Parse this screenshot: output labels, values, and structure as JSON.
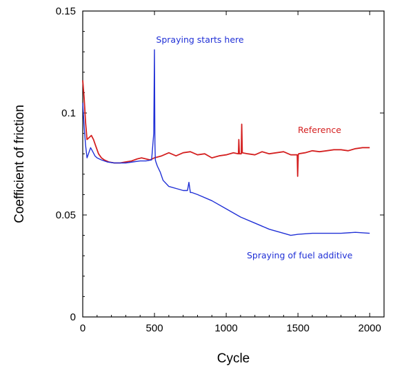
{
  "chart_data": {
    "type": "line",
    "title": "",
    "xlabel": "Cycle",
    "ylabel": "Coefficient of friction",
    "xlim": [
      0,
      2100
    ],
    "ylim": [
      0,
      0.15
    ],
    "xticks": [
      0,
      500,
      1000,
      1500,
      2000
    ],
    "xtick_labels": [
      "0",
      "500",
      "1000",
      "1500",
      "2000"
    ],
    "yticks": [
      0,
      0.05,
      0.1,
      0.15
    ],
    "ytick_labels": [
      "0",
      "0.05",
      "0.1",
      "0.15"
    ],
    "grid": false,
    "legend": "none",
    "series": [
      {
        "name": "Reference",
        "color": "#d42020",
        "x": [
          0,
          10,
          20,
          30,
          45,
          60,
          75,
          90,
          110,
          130,
          150,
          180,
          220,
          260,
          300,
          340,
          380,
          410,
          440,
          470,
          500,
          550,
          600,
          650,
          700,
          750,
          800,
          850,
          900,
          950,
          1000,
          1050,
          1085,
          1088,
          1092,
          1105,
          1108,
          1112,
          1150,
          1200,
          1250,
          1300,
          1350,
          1400,
          1450,
          1495,
          1498,
          1502,
          1505,
          1550,
          1600,
          1650,
          1700,
          1750,
          1800,
          1850,
          1900,
          1950,
          2000
        ],
        "y": [
          0.116,
          0.107,
          0.095,
          0.087,
          0.088,
          0.089,
          0.087,
          0.084,
          0.08,
          0.078,
          0.077,
          0.076,
          0.0755,
          0.0755,
          0.076,
          0.0765,
          0.0775,
          0.078,
          0.0775,
          0.077,
          0.078,
          0.079,
          0.0805,
          0.079,
          0.0805,
          0.081,
          0.0795,
          0.08,
          0.078,
          0.079,
          0.0795,
          0.0805,
          0.08,
          0.087,
          0.08,
          0.08,
          0.0945,
          0.0805,
          0.08,
          0.0795,
          0.081,
          0.08,
          0.0805,
          0.081,
          0.0795,
          0.0795,
          0.069,
          0.0795,
          0.08,
          0.0805,
          0.0815,
          0.081,
          0.0815,
          0.082,
          0.082,
          0.0815,
          0.0825,
          0.083,
          0.083
        ]
      },
      {
        "name": "Spraying of fuel additive",
        "color": "#1f2fd6",
        "x": [
          0,
          10,
          20,
          30,
          40,
          55,
          70,
          85,
          100,
          130,
          170,
          220,
          300,
          350,
          400,
          440,
          480,
          495,
          500,
          503,
          506,
          510,
          520,
          540,
          560,
          600,
          650,
          700,
          730,
          740,
          750,
          760,
          800,
          900,
          1000,
          1100,
          1200,
          1300,
          1400,
          1450,
          1500,
          1600,
          1700,
          1800,
          1900,
          2000
        ],
        "y": [
          0.105,
          0.093,
          0.084,
          0.078,
          0.08,
          0.083,
          0.081,
          0.079,
          0.078,
          0.077,
          0.076,
          0.0755,
          0.0755,
          0.076,
          0.0765,
          0.0765,
          0.077,
          0.09,
          0.131,
          0.085,
          0.077,
          0.076,
          0.074,
          0.071,
          0.067,
          0.064,
          0.063,
          0.062,
          0.062,
          0.066,
          0.061,
          0.061,
          0.06,
          0.057,
          0.053,
          0.049,
          0.046,
          0.043,
          0.041,
          0.04,
          0.0405,
          0.041,
          0.041,
          0.041,
          0.0415,
          0.041
        ]
      }
    ],
    "annotations": [
      {
        "text": "Spraying starts here",
        "color": "#1f2fd6"
      },
      {
        "text": "Reference",
        "color": "#d42020"
      },
      {
        "text": "Spraying of fuel additive",
        "color": "#1f2fd6"
      }
    ]
  }
}
